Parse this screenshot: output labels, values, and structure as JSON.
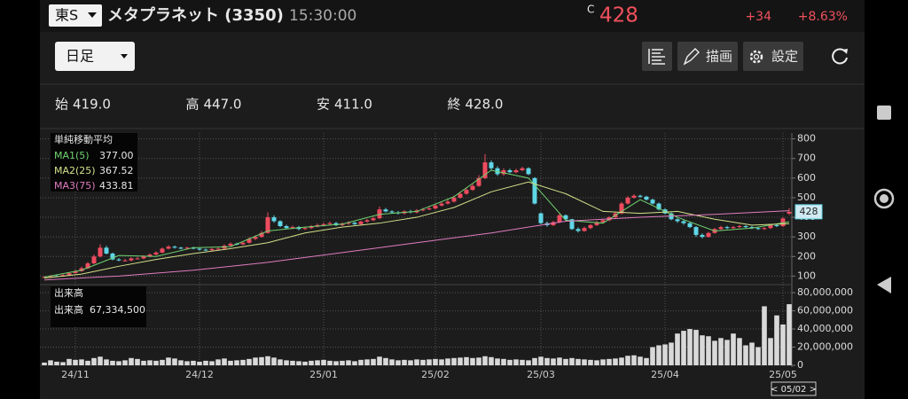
{
  "header": {
    "market": "東S",
    "name": "メタプラネット (3350)",
    "time": "15:30:00",
    "price_flag": "C",
    "price": "428",
    "change": "+34",
    "change_pct": "+8.63%"
  },
  "toolbar": {
    "period": "日足",
    "draw": "描画",
    "settings": "設定"
  },
  "ohlc": [
    {
      "label": "始",
      "value": "419.0"
    },
    {
      "label": "高",
      "value": "447.0"
    },
    {
      "label": "安",
      "value": "411.0"
    },
    {
      "label": "終",
      "value": "428.0"
    }
  ],
  "chart_data": [
    {
      "type": "candlestick",
      "categories": [
        null,
        null,
        null,
        null,
        null,
        "24/11",
        null,
        null,
        null,
        null,
        null,
        null,
        null,
        null,
        null,
        null,
        null,
        null,
        null,
        null,
        null,
        null,
        null,
        null,
        null,
        "24/12",
        null,
        null,
        null,
        null,
        null,
        null,
        null,
        null,
        null,
        null,
        null,
        null,
        null,
        null,
        null,
        null,
        null,
        null,
        null,
        "25/01",
        null,
        null,
        null,
        null,
        null,
        null,
        null,
        null,
        null,
        null,
        null,
        null,
        null,
        null,
        null,
        null,
        null,
        "25/02",
        null,
        null,
        null,
        null,
        null,
        null,
        null,
        null,
        null,
        null,
        null,
        null,
        null,
        null,
        null,
        null,
        "25/03",
        null,
        null,
        null,
        null,
        null,
        null,
        null,
        null,
        null,
        null,
        null,
        null,
        null,
        null,
        null,
        null,
        null,
        null,
        null,
        "25/04",
        null,
        null,
        null,
        null,
        null,
        null,
        null,
        null,
        null,
        null,
        null,
        null,
        null,
        null,
        null,
        null,
        null,
        null,
        "25/05",
        null
      ],
      "open": [
        92,
        95,
        100,
        98,
        105,
        115,
        125,
        140,
        165,
        200,
        245,
        215,
        185,
        180,
        180,
        190,
        190,
        200,
        210,
        220,
        240,
        250,
        245,
        240,
        245,
        240,
        235,
        232,
        238,
        240,
        255,
        265,
        262,
        270,
        290,
        300,
        320,
        400,
        380,
        355,
        345,
        350,
        340,
        345,
        352,
        360,
        365,
        370,
        360,
        368,
        372,
        365,
        378,
        385,
        395,
        440,
        430,
        425,
        420,
        430,
        425,
        435,
        440,
        445,
        460,
        470,
        480,
        500,
        520,
        540,
        560,
        600,
        680,
        650,
        620,
        640,
        630,
        640,
        650,
        600,
        420,
        370,
        360,
        375,
        410,
        390,
        340,
        330,
        345,
        360,
        375,
        385,
        400,
        420,
        470,
        500,
        510,
        505,
        490,
        470,
        440,
        420,
        390,
        380,
        370,
        350,
        310,
        300,
        320,
        340,
        350,
        345,
        350,
        355,
        350,
        345,
        340,
        345,
        360,
        355,
        419
      ],
      "high": [
        100,
        105,
        106,
        110,
        120,
        132,
        148,
        172,
        210,
        262,
        255,
        220,
        192,
        188,
        196,
        198,
        206,
        216,
        226,
        246,
        258,
        256,
        250,
        250,
        250,
        246,
        240,
        244,
        246,
        262,
        272,
        270,
        278,
        298,
        308,
        330,
        425,
        410,
        385,
        362,
        358,
        356,
        352,
        360,
        368,
        372,
        378,
        376,
        374,
        380,
        378,
        384,
        392,
        402,
        455,
        448,
        436,
        432,
        436,
        438,
        442,
        448,
        452,
        468,
        478,
        490,
        510,
        530,
        552,
        572,
        615,
        722,
        690,
        660,
        650,
        648,
        648,
        658,
        655,
        605,
        425,
        378,
        382,
        420,
        415,
        392,
        348,
        352,
        366,
        382,
        392,
        406,
        428,
        478,
        508,
        518,
        515,
        510,
        495,
        475,
        445,
        425,
        396,
        386,
        375,
        355,
        318,
        326,
        346,
        356,
        356,
        356,
        362,
        360,
        356,
        350,
        350,
        366,
        364,
        400,
        447
      ],
      "low": [
        90,
        93,
        96,
        96,
        103,
        113,
        122,
        137,
        160,
        195,
        210,
        180,
        176,
        174,
        176,
        184,
        186,
        195,
        205,
        216,
        236,
        240,
        236,
        236,
        236,
        230,
        228,
        228,
        234,
        236,
        250,
        258,
        258,
        266,
        284,
        296,
        316,
        372,
        350,
        340,
        340,
        334,
        336,
        340,
        348,
        355,
        360,
        355,
        355,
        362,
        360,
        360,
        372,
        380,
        390,
        425,
        420,
        414,
        415,
        420,
        420,
        430,
        436,
        440,
        455,
        465,
        475,
        495,
        515,
        535,
        555,
        595,
        640,
        612,
        612,
        625,
        625,
        635,
        615,
        465,
        365,
        352,
        355,
        370,
        385,
        335,
        322,
        326,
        340,
        355,
        370,
        380,
        395,
        415,
        465,
        495,
        500,
        485,
        465,
        435,
        415,
        385,
        372,
        362,
        345,
        300,
        292,
        296,
        316,
        336,
        340,
        340,
        345,
        345,
        340,
        335,
        335,
        340,
        350,
        350,
        411
      ],
      "close": [
        95,
        100,
        98,
        105,
        115,
        125,
        140,
        165,
        200,
        245,
        215,
        185,
        180,
        180,
        190,
        190,
        200,
        210,
        220,
        240,
        250,
        245,
        240,
        245,
        240,
        235,
        232,
        238,
        240,
        255,
        265,
        262,
        270,
        290,
        300,
        320,
        400,
        380,
        355,
        345,
        350,
        340,
        345,
        352,
        360,
        365,
        370,
        360,
        368,
        372,
        365,
        378,
        385,
        395,
        440,
        430,
        425,
        420,
        430,
        425,
        435,
        440,
        445,
        460,
        470,
        480,
        500,
        520,
        540,
        560,
        600,
        680,
        650,
        620,
        640,
        630,
        640,
        650,
        620,
        470,
        370,
        360,
        375,
        410,
        390,
        340,
        330,
        345,
        360,
        375,
        385,
        400,
        420,
        470,
        500,
        510,
        505,
        490,
        470,
        440,
        420,
        390,
        380,
        370,
        350,
        310,
        300,
        320,
        340,
        350,
        345,
        350,
        355,
        350,
        345,
        340,
        345,
        360,
        355,
        394,
        428
      ],
      "up_color": "#ef4b5f",
      "down_color": "#5fd6e6",
      "ylim": [
        70,
        830
      ],
      "yticks": [
        100,
        200,
        300,
        400,
        500,
        600,
        700,
        800
      ],
      "legend_title": "単純移動平均",
      "series": [
        {
          "name": "MA1(5)",
          "legend_value": "377.00",
          "color": "#6fd36f",
          "x": [
            0,
            6,
            12,
            18,
            24,
            30,
            36,
            42,
            48,
            54,
            60,
            66,
            72,
            78,
            84,
            90,
            96,
            102,
            108,
            114,
            120
          ],
          "values": [
            95,
            130,
            205,
            200,
            245,
            250,
            330,
            350,
            365,
            415,
            430,
            505,
            640,
            600,
            385,
            370,
            490,
            400,
            330,
            345,
            377
          ]
        },
        {
          "name": "MA2(25)",
          "legend_value": "367.52",
          "color": "#d4e08a",
          "x": [
            0,
            6,
            12,
            18,
            24,
            30,
            36,
            42,
            48,
            54,
            60,
            66,
            72,
            78,
            84,
            90,
            96,
            102,
            108,
            114,
            120
          ],
          "values": [
            90,
            110,
            150,
            185,
            215,
            240,
            270,
            320,
            350,
            370,
            400,
            450,
            530,
            580,
            520,
            430,
            420,
            430,
            390,
            360,
            367.52
          ]
        },
        {
          "name": "MA3(75)",
          "legend_value": "433.81",
          "color": "#e07cc0",
          "x": [
            0,
            12,
            24,
            36,
            48,
            60,
            72,
            84,
            96,
            108,
            120
          ],
          "values": [
            80,
            100,
            130,
            170,
            220,
            270,
            320,
            380,
            400,
            415,
            433.81
          ]
        }
      ],
      "cursor_label": "< 05/02 >"
    },
    {
      "type": "bar",
      "title": "出来高",
      "legend_label": "出来高",
      "legend_value": "67,334,500",
      "color": "#d9d9d9",
      "values": [
        3000000,
        5500000,
        4000000,
        3500000,
        7000000,
        6000000,
        6500000,
        5000000,
        8000000,
        9500000,
        6500000,
        5000000,
        4500000,
        5500000,
        8000000,
        7000000,
        5000000,
        5500000,
        5000000,
        6000000,
        8500000,
        7500000,
        5500000,
        4500000,
        5000000,
        4000000,
        5000000,
        4500000,
        6500000,
        7500000,
        5000000,
        5500000,
        6000000,
        7000000,
        8500000,
        9000000,
        10000000,
        8500000,
        6500000,
        5500000,
        5000000,
        4500000,
        4000000,
        5000000,
        5500000,
        6000000,
        5000000,
        4500000,
        5000000,
        5500000,
        4500000,
        6000000,
        6500000,
        7000000,
        9500000,
        8000000,
        6500000,
        5500000,
        6000000,
        5500000,
        6500000,
        6000000,
        6500000,
        7000000,
        6500000,
        7500000,
        8000000,
        8500000,
        9000000,
        8000000,
        8500000,
        10000000,
        9000000,
        7500000,
        7000000,
        6000000,
        6500000,
        6000000,
        5500000,
        8000000,
        9500000,
        8000000,
        7500000,
        8500000,
        7000000,
        8000000,
        7000000,
        6500000,
        6000000,
        5500000,
        6500000,
        7000000,
        7500000,
        8500000,
        10500000,
        11000000,
        9500000,
        8000000,
        20000000,
        22000000,
        23000000,
        25000000,
        35000000,
        38000000,
        40000000,
        39000000,
        33000000,
        32000000,
        27000000,
        30000000,
        28000000,
        35000000,
        30000000,
        22000000,
        25000000,
        20000000,
        65000000,
        30000000,
        55000000,
        45000000,
        67334500
      ],
      "ylim": [
        0,
        84000000
      ],
      "yticks": [
        0,
        {
          "value": 20000000,
          "label": "20,000,000"
        },
        {
          "value": 40000000,
          "label": "40,000,000"
        },
        {
          "value": 60000000,
          "label": "60,000,000"
        },
        {
          "value": 80000000,
          "label": "80,000,000"
        }
      ]
    }
  ]
}
